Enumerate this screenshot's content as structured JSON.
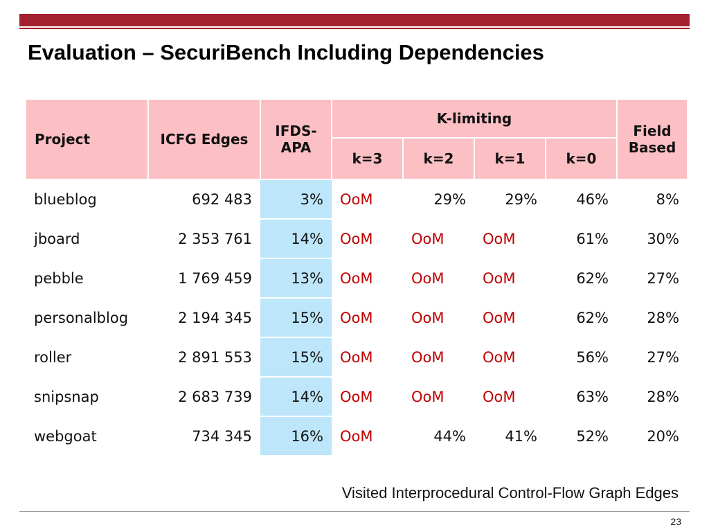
{
  "title": "Evaluation – SecuriBench Including Dependencies",
  "table": {
    "headers": {
      "project": "Project",
      "icfg_edges": "ICFG Edges",
      "ifds_apa": "IFDS-\nAPA",
      "k_limiting": "K-limiting",
      "k3": "k=3",
      "k2": "k=2",
      "k1": "k=1",
      "k0": "k=0",
      "field_based": "Field\nBased"
    },
    "rows": [
      {
        "project": "blueblog",
        "icfg_edges": "692 483",
        "ifds_apa": "3%",
        "k3": "OoM",
        "k2": "29%",
        "k1": "29%",
        "k0": "46%",
        "field_based": "8%"
      },
      {
        "project": "jboard",
        "icfg_edges": "2 353 761",
        "ifds_apa": "14%",
        "k3": "OoM",
        "k2": "OoM",
        "k1": "OoM",
        "k0": "61%",
        "field_based": "30%"
      },
      {
        "project": "pebble",
        "icfg_edges": "1 769 459",
        "ifds_apa": "13%",
        "k3": "OoM",
        "k2": "OoM",
        "k1": "OoM",
        "k0": "62%",
        "field_based": "27%"
      },
      {
        "project": "personalblog",
        "icfg_edges": "2 194 345",
        "ifds_apa": "15%",
        "k3": "OoM",
        "k2": "OoM",
        "k1": "OoM",
        "k0": "62%",
        "field_based": "28%"
      },
      {
        "project": "roller",
        "icfg_edges": "2 891 553",
        "ifds_apa": "15%",
        "k3": "OoM",
        "k2": "OoM",
        "k1": "OoM",
        "k0": "56%",
        "field_based": "27%"
      },
      {
        "project": "snipsnap",
        "icfg_edges": "2 683 739",
        "ifds_apa": "14%",
        "k3": "OoM",
        "k2": "OoM",
        "k1": "OoM",
        "k0": "63%",
        "field_based": "28%"
      },
      {
        "project": "webgoat",
        "icfg_edges": "734 345",
        "ifds_apa": "16%",
        "k3": "OoM",
        "k2": "44%",
        "k1": "41%",
        "k0": "52%",
        "field_based": "20%"
      }
    ]
  },
  "caption": "Visited Interprocedural Control-Flow Graph Edges",
  "page_number": "23",
  "colors": {
    "accent": "#a3202e",
    "header_bg": "#fbbfc4",
    "ifds_header_bg": "#1fa7f2",
    "ifds_cell_bg": "#bde6fb",
    "oom_text": "#c00000"
  }
}
